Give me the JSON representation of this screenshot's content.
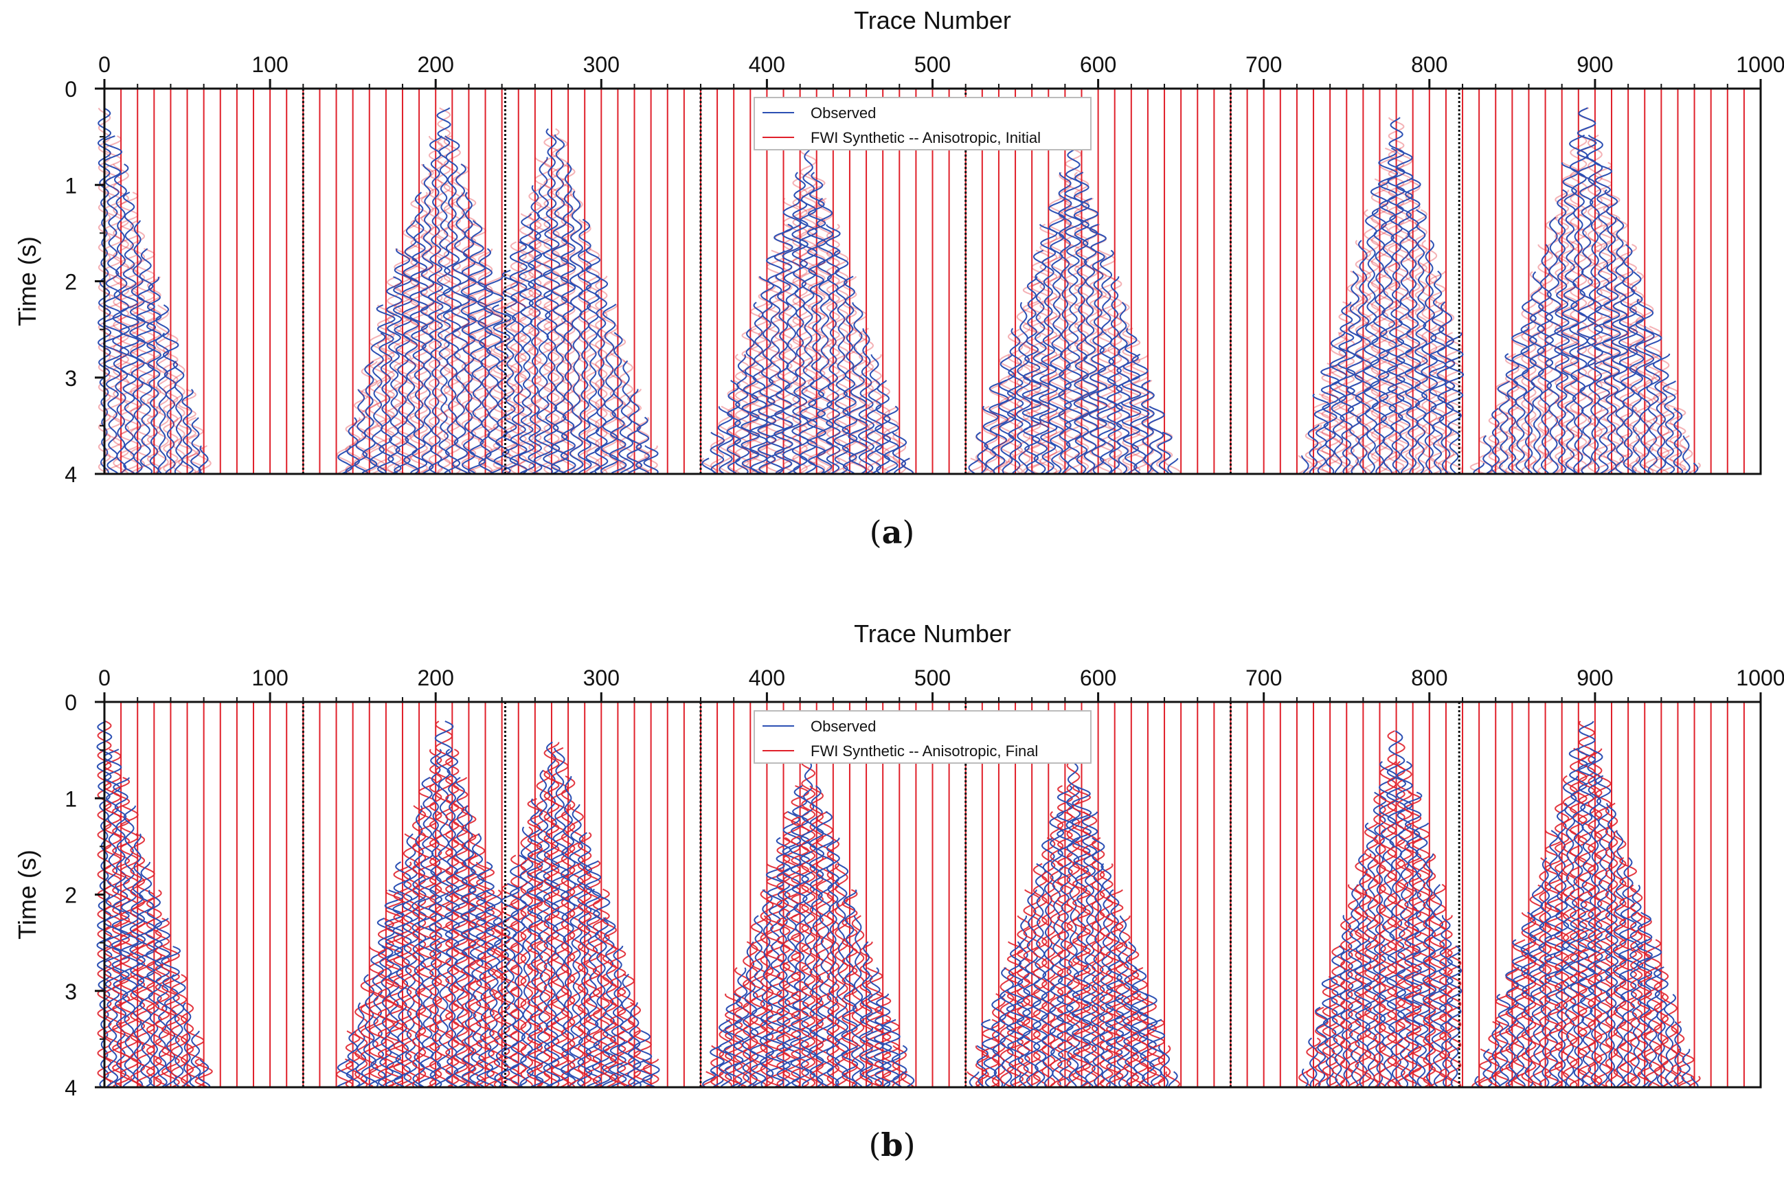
{
  "chart_data": [
    {
      "type": "line",
      "panel_label": "a",
      "xlabel": "Trace Number",
      "ylabel": "Time (s)",
      "x_ticks": [
        0,
        100,
        200,
        300,
        400,
        500,
        600,
        700,
        800,
        900,
        1000
      ],
      "y_ticks": [
        0,
        1,
        2,
        3,
        4
      ],
      "xlim": [
        0,
        1000
      ],
      "ylim": [
        0,
        4
      ],
      "y_inverted": true,
      "x_axis_position": "top",
      "legend_position": "top-center",
      "series": [
        {
          "name": "Observed",
          "color": "#2b4fb3"
        },
        {
          "name": "FWI Synthetic -- Anisotropic, Initial",
          "color": "#e0202a"
        }
      ],
      "shot_gathers": [
        {
          "x_start": 0,
          "x_end": 65,
          "apex_x": 0,
          "t_start": 0.2,
          "shape": "right-half"
        },
        {
          "x_start": 140,
          "x_end": 240,
          "apex_x": 205,
          "t_start": 0.2,
          "shape": "full"
        },
        {
          "x_start": 242,
          "x_end": 335,
          "apex_x": 272,
          "t_start": 0.3,
          "shape": "full"
        },
        {
          "x_start": 362,
          "x_end": 488,
          "apex_x": 425,
          "t_start": 0.6,
          "shape": "full"
        },
        {
          "x_start": 522,
          "x_end": 648,
          "apex_x": 585,
          "t_start": 0.6,
          "shape": "full"
        },
        {
          "x_start": 722,
          "x_end": 815,
          "apex_x": 780,
          "t_start": 0.3,
          "shape": "full"
        },
        {
          "x_start": 830,
          "x_end": 962,
          "apex_x": 895,
          "t_start": 0.2,
          "shape": "full"
        }
      ],
      "gather_boundaries": [
        120,
        242,
        360,
        520,
        680,
        818
      ]
    },
    {
      "type": "line",
      "panel_label": "b",
      "xlabel": "Trace Number",
      "ylabel": "Time (s)",
      "x_ticks": [
        0,
        100,
        200,
        300,
        400,
        500,
        600,
        700,
        800,
        900,
        1000
      ],
      "y_ticks": [
        0,
        1,
        2,
        3,
        4
      ],
      "xlim": [
        0,
        1000
      ],
      "ylim": [
        0,
        4
      ],
      "y_inverted": true,
      "x_axis_position": "top",
      "legend_position": "top-center",
      "series": [
        {
          "name": "Observed",
          "color": "#2b4fb3"
        },
        {
          "name": "FWI Synthetic -- Anisotropic, Final",
          "color": "#e0202a"
        }
      ],
      "shot_gathers": [
        {
          "x_start": 0,
          "x_end": 65,
          "apex_x": 0,
          "t_start": 0.2,
          "shape": "right-half"
        },
        {
          "x_start": 140,
          "x_end": 240,
          "apex_x": 205,
          "t_start": 0.2,
          "shape": "full"
        },
        {
          "x_start": 242,
          "x_end": 335,
          "apex_x": 272,
          "t_start": 0.3,
          "shape": "full"
        },
        {
          "x_start": 362,
          "x_end": 488,
          "apex_x": 425,
          "t_start": 0.6,
          "shape": "full"
        },
        {
          "x_start": 522,
          "x_end": 648,
          "apex_x": 585,
          "t_start": 0.6,
          "shape": "full"
        },
        {
          "x_start": 722,
          "x_end": 815,
          "apex_x": 780,
          "t_start": 0.3,
          "shape": "full"
        },
        {
          "x_start": 830,
          "x_end": 962,
          "apex_x": 895,
          "t_start": 0.2,
          "shape": "full"
        }
      ],
      "gather_boundaries": [
        120,
        242,
        360,
        520,
        680,
        818
      ]
    }
  ]
}
